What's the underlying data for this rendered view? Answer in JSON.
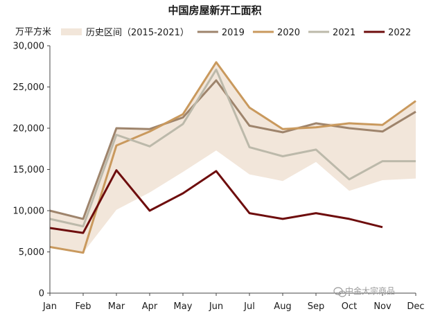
{
  "chart_data": {
    "type": "line",
    "title": "中国房屋新开工面积",
    "ylabel": "万平方米",
    "xlabel": "",
    "categories": [
      "Jan",
      "Feb",
      "Mar",
      "Apr",
      "May",
      "Jun",
      "Jul",
      "Aug",
      "Sep",
      "Oct",
      "Nov",
      "Dec"
    ],
    "ylim": [
      0,
      30000
    ],
    "yticks": [
      0,
      5000,
      10000,
      15000,
      20000,
      25000,
      30000
    ],
    "ytick_labels": [
      "0",
      "5,000",
      "10,000",
      "15,000",
      "20,000",
      "25,000",
      "30,000"
    ],
    "grid": false,
    "legend_position": "top",
    "band": {
      "name": "历史区间（2015-2021）",
      "color": "#f2e6da",
      "lower": [
        5600,
        4900,
        10100,
        12200,
        14700,
        17300,
        14400,
        13600,
        15900,
        12400,
        13700,
        13900
      ],
      "upper": [
        10000,
        9000,
        20000,
        19900,
        21700,
        28000,
        22500,
        19900,
        20600,
        20600,
        20400,
        23300
      ]
    },
    "series": [
      {
        "name": "2019",
        "color": "#9e846c",
        "width": 3,
        "values": [
          10000,
          9000,
          20000,
          19900,
          21300,
          25800,
          20300,
          19500,
          20600,
          20000,
          19600,
          22000
        ]
      },
      {
        "name": "2020",
        "color": "#c9995d",
        "width": 3,
        "values": [
          5600,
          4900,
          17900,
          19600,
          21700,
          28000,
          22500,
          19900,
          20100,
          20600,
          20400,
          23300
        ]
      },
      {
        "name": "2021",
        "color": "#bcb9aa",
        "width": 3,
        "values": [
          9000,
          8100,
          19200,
          17800,
          20500,
          27100,
          17700,
          16600,
          17400,
          13800,
          16000,
          16000
        ]
      },
      {
        "name": "2022",
        "color": "#6e0d0d",
        "width": 3,
        "values": [
          7900,
          7300,
          14900,
          10000,
          12100,
          14800,
          9700,
          9000,
          9700,
          9000,
          8000,
          null
        ]
      }
    ]
  },
  "watermark": {
    "icon": "wechat-icon",
    "text": "中金大宗商品"
  }
}
